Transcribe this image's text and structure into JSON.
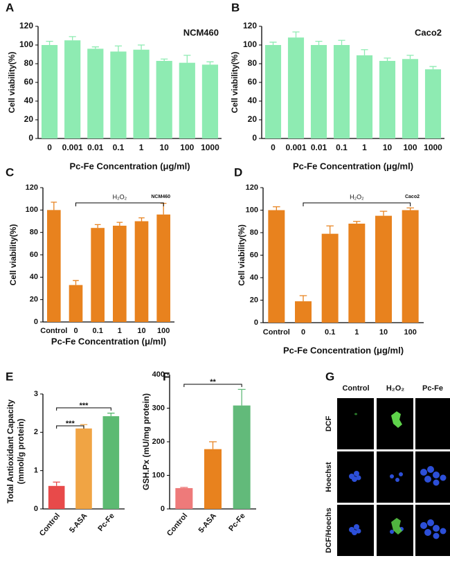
{
  "chart_data": [
    {
      "type": "bar",
      "panel": "A",
      "label": "NCM460",
      "categories": [
        "0",
        "0.001",
        "0.01",
        "0.1",
        "1",
        "10",
        "100",
        "1000"
      ],
      "values": [
        100,
        105,
        96,
        93,
        95,
        83,
        81,
        79
      ],
      "errors": [
        4,
        4,
        2,
        6,
        5,
        2,
        8,
        3
      ],
      "color": "#8eebb2",
      "ylim": [
        0,
        120
      ],
      "yticks": [
        0,
        20,
        40,
        60,
        80,
        100,
        120
      ],
      "y_label": [
        "Cell viability(%)"
      ],
      "x_label": "Pc-Fe Concentration (μg/ml)"
    },
    {
      "type": "bar",
      "panel": "B",
      "label": "Caco2",
      "categories": [
        "0",
        "0.001",
        "0.01",
        "0.1",
        "1",
        "10",
        "100",
        "1000"
      ],
      "values": [
        100,
        108,
        100,
        100,
        89,
        83,
        85,
        74
      ],
      "errors": [
        3,
        6,
        4,
        5,
        6,
        3,
        4,
        3
      ],
      "color": "#8eebb2",
      "ylim": [
        0,
        120
      ],
      "yticks": [
        0,
        20,
        40,
        60,
        80,
        100,
        120
      ],
      "y_label": [
        "Cell viability(%)"
      ],
      "x_label": "Pc-Fe Concentration (μg/ml)"
    },
    {
      "type": "bar",
      "panel": "C",
      "label": "NCM460",
      "bracket": "H₂O₂",
      "categories": [
        "Control",
        "0",
        "0.1",
        "1",
        "10",
        "100"
      ],
      "values": [
        100,
        33,
        84,
        86,
        90,
        96
      ],
      "errors": [
        7,
        4,
        3,
        3,
        3,
        10
      ],
      "color": "#e8821e",
      "ylim": [
        0,
        120
      ],
      "yticks": [
        0,
        20,
        40,
        60,
        80,
        100,
        120
      ],
      "y_label": [
        "Cell viability(%)"
      ],
      "x_label": "Pc-Fe Concentration (μ/ml)"
    },
    {
      "type": "bar",
      "panel": "D",
      "label": "Caco2",
      "bracket": "H₂O₂",
      "categories": [
        "Control",
        "0",
        "0.1",
        "1",
        "10",
        "100"
      ],
      "values": [
        100,
        19,
        79,
        88,
        95,
        100
      ],
      "errors": [
        3,
        5,
        7,
        2,
        4,
        2
      ],
      "color": "#e8821e",
      "ylim": [
        0,
        120
      ],
      "yticks": [
        0,
        20,
        40,
        60,
        80,
        100,
        120
      ],
      "y_label": [
        "Cell viability(%)"
      ],
      "x_label": "Pc-Fe Concentration (μg/ml)"
    },
    {
      "type": "bar",
      "panel": "E",
      "categories": [
        "Control",
        "5-ASA",
        "Pc-Fe"
      ],
      "values": [
        0.6,
        2.1,
        2.42
      ],
      "errors": [
        0.1,
        0.1,
        0.08
      ],
      "colors": [
        "#e84a4a",
        "#f0a444",
        "#5cba72"
      ],
      "ylim": [
        0,
        3
      ],
      "yticks": [
        0,
        1,
        2,
        3
      ],
      "y_label": [
        "Total Antioxidant Capacity",
        "(mmol/g protein)"
      ],
      "significance": [
        {
          "between": [
            "Control",
            "5-ASA"
          ],
          "label": "***"
        },
        {
          "between": [
            "Control",
            "Pc-Fe"
          ],
          "label": "***"
        }
      ]
    },
    {
      "type": "bar",
      "panel": "F",
      "categories": [
        "Control",
        "5-ASA",
        "Pc-Fe"
      ],
      "values": [
        62,
        178,
        308
      ],
      "errors": [
        2,
        22,
        48
      ],
      "colors": [
        "#ee7a7a",
        "#e8821e",
        "#62ba7a"
      ],
      "ylim": [
        0,
        400
      ],
      "yticks": [
        0,
        100,
        200,
        300,
        400
      ],
      "y_label": [
        "GSH.Px (mU/mg protein)"
      ],
      "significance": [
        {
          "between": [
            "Control",
            "Pc-Fe"
          ],
          "label": "**"
        }
      ]
    }
  ],
  "image_panel": {
    "panel": "G",
    "columns": [
      "Control",
      "H₂O₂",
      "Pc-Fe"
    ],
    "rows": [
      "DCF",
      "Hoechst",
      "DCF/Hoechs"
    ]
  }
}
